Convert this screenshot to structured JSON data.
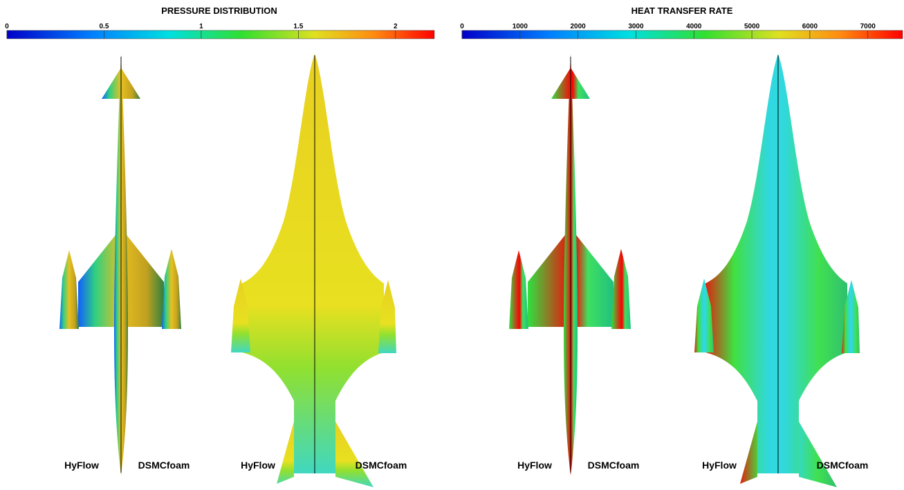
{
  "panels": [
    {
      "title": "PRESSURE DISTRIBUTION",
      "colorbar": {
        "range": [
          0,
          2.2
        ],
        "ticks": [
          0,
          0.5,
          1,
          1.5,
          2
        ]
      },
      "views": [
        {
          "left": "HyFlow",
          "right": "DSMCfoam"
        },
        {
          "left": "HyFlow",
          "right": "DSMCfoam"
        }
      ]
    },
    {
      "title": "HEAT TRANSFER RATE",
      "colorbar": {
        "range": [
          0,
          7600
        ],
        "ticks": [
          0,
          1000,
          2000,
          3000,
          4000,
          5000,
          6000,
          7000
        ]
      },
      "views": [
        {
          "left": "HyFlow",
          "right": "DSMCfoam"
        },
        {
          "left": "HyFlow",
          "right": "DSMCfoam"
        }
      ]
    }
  ]
}
